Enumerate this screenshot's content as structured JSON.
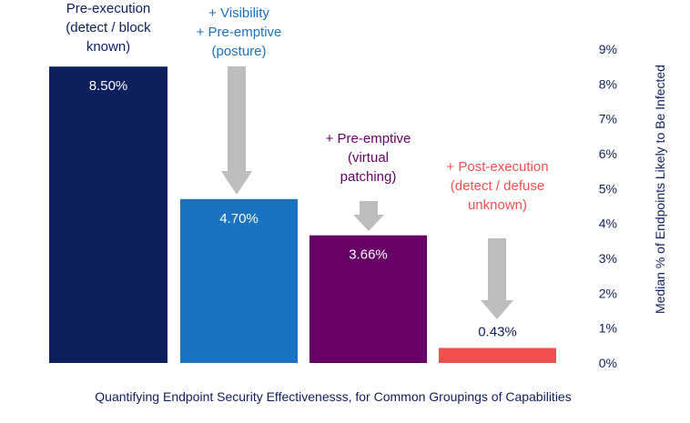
{
  "chart_data": {
    "type": "bar",
    "title": "",
    "xlabel": "Quantifying Endpoint Security Effectivenesss, for Common Groupings of Capabilities",
    "ylabel": "Median % of Endpoints Likely to Be Infected",
    "ylim": [
      0,
      9
    ],
    "yaxis_position": "right",
    "grid": false,
    "y_ticks": [
      "0%",
      "1%",
      "2%",
      "3%",
      "4%",
      "5%",
      "6%",
      "7%",
      "8%",
      "9%"
    ],
    "categories": [
      "Pre-execution (detect / block known)",
      "+ Visibility + Pre-emptive (posture)",
      "+ Pre-emptive (virtual patching)",
      "+ Post-execution (detect / defuse unknown)"
    ],
    "values": [
      8.5,
      4.7,
      3.66,
      0.43
    ],
    "value_labels": [
      "8.50%",
      "4.70%",
      "3.66%",
      "0.43%"
    ],
    "category_label_lines": [
      [
        "Pre-execution",
        "(detect / block",
        "known)"
      ],
      [
        "+ Visibility",
        "+ Pre-emptive",
        "(posture)"
      ],
      [
        "+ Pre-emptive",
        "(virtual",
        "patching)"
      ],
      [
        "+ Post-execution",
        "(detect / defuse",
        "unknown)"
      ]
    ],
    "colors": {
      "bars": [
        "#0d1f5c",
        "#1a72c1",
        "#660066",
        "#f25050"
      ],
      "category_label_text": [
        "#0d1f5c",
        "#1a72c1",
        "#660066",
        "#f25050"
      ],
      "value_label_text": [
        "#ffffff",
        "#ffffff",
        "#ffffff",
        "#0d1f5c"
      ],
      "arrow": "#bdbdbd",
      "axis_text": "#0d1f5c"
    }
  }
}
